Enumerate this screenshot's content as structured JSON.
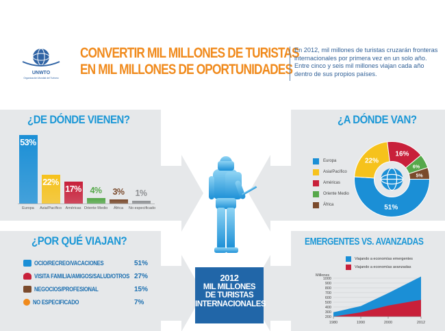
{
  "header": {
    "logo_text": "UNWTO",
    "logo_subtitle": "Organización Mundial del Turismo",
    "title_line1": "CONVERTIR MIL MILLONES DE TURISTAS",
    "title_line2": "EN MIL MILLONES DE OPORTUNIDADES",
    "desc_line1": "En 2012, mil millones de turistas cruzarán fronteras",
    "desc_line2": "internacionales por primera vez en un solo año.",
    "desc_line3": "Entre cinco y seis mil millones viajan cada año",
    "desc_line4": "dentro de sus propios países."
  },
  "colors": {
    "accent_orange": "#f08a1c",
    "accent_blue": "#1b97d6",
    "dark_blue": "#2166a8",
    "panel_grey": "#e6e8ea"
  },
  "origin": {
    "title": "¿DE DÓNDE VIENEN?",
    "bars": [
      {
        "label": "Europa",
        "value": 53,
        "display": "53%",
        "color": "#1b8fd6"
      },
      {
        "label": "Asia/Pacífico",
        "value": 22,
        "display": "22%",
        "color": "#f6c21c"
      },
      {
        "label": "Américas",
        "value": 17,
        "display": "17%",
        "color": "#c8203a"
      },
      {
        "label": "Oriente Medio",
        "value": 4,
        "display": "4%",
        "color": "#56a84a"
      },
      {
        "label": "África",
        "value": 3,
        "display": "3%",
        "color": "#7a4a2c"
      },
      {
        "label": "No especificado",
        "value": 1,
        "display": "1%",
        "color": "#8f9194"
      }
    ]
  },
  "why": {
    "title": "¿POR QUÉ VIAJAN?",
    "items": [
      {
        "label": "OCIO/RECREO/VACACIONES",
        "pct": "51%",
        "icon": "camera-icon",
        "color": "#1b8fd6"
      },
      {
        "label": "VISITA FAMILIA/AMIGOS/SALUD/OTROS",
        "pct": "27%",
        "icon": "heart-icon",
        "color": "#c8203a"
      },
      {
        "label": "NEGOCIOS/PROFESIONAL",
        "pct": "15%",
        "icon": "briefcase-icon",
        "color": "#7a4a2c"
      },
      {
        "label": "NO ESPECIFICADO",
        "pct": "7%",
        "icon": "question-icon",
        "color": "#f08a1c"
      }
    ]
  },
  "destination": {
    "title": "¿A DÓNDE VAN?",
    "slices": [
      {
        "label": "Europa",
        "value": 51,
        "display": "51%",
        "color": "#1b8fd6"
      },
      {
        "label": "Asia/Pacífico",
        "value": 22,
        "display": "22%",
        "color": "#f6c21c"
      },
      {
        "label": "Américas",
        "value": 16,
        "display": "16%",
        "color": "#c8203a"
      },
      {
        "label": "Oriente Medio",
        "value": 6,
        "display": "6%",
        "color": "#56a84a"
      },
      {
        "label": "África",
        "value": 5,
        "display": "5%",
        "color": "#7a4a2c"
      }
    ]
  },
  "center": {
    "year": "2012",
    "line1": "MIL MILLONES",
    "line2": "DE TURISTAS",
    "line3": "INTERNACIONALES"
  },
  "emerging": {
    "title": "EMERGENTES VS. AVANZADAS",
    "ylabel": "Millones",
    "legend_emerging": "Viajando a economías emergentes",
    "legend_advanced": "Viajando a economías avanzadas",
    "x_ticks": [
      "1980",
      "1990",
      "2000",
      "2012"
    ],
    "y_ticks": [
      "200",
      "300",
      "400",
      "500",
      "600",
      "700",
      "800",
      "900",
      "1000"
    ],
    "color_emerging": "#1b8fd6",
    "color_advanced": "#c8203a"
  },
  "chart_data": [
    {
      "type": "bar",
      "title": "¿DE DÓNDE VIENEN?",
      "categories": [
        "Europa",
        "Asia/Pacífico",
        "Américas",
        "Oriente Medio",
        "África",
        "No especificado"
      ],
      "values": [
        53,
        22,
        17,
        4,
        3,
        1
      ]
    },
    {
      "type": "pie",
      "title": "¿A DÓNDE VAN?",
      "categories": [
        "Europa",
        "Asia/Pacífico",
        "Américas",
        "Oriente Medio",
        "África"
      ],
      "values": [
        51,
        22,
        16,
        6,
        5
      ]
    },
    {
      "type": "area",
      "title": "EMERGENTES VS. AVANZADAS",
      "ylabel": "Millones",
      "x": [
        1980,
        1990,
        2000,
        2012
      ],
      "ylim": [
        200,
        1000
      ],
      "series": [
        {
          "name": "Viajando a economías emergentes",
          "values": [
            290,
            420,
            690,
            1035
          ]
        },
        {
          "name": "Viajando a economías avanzadas",
          "values": [
            200,
            290,
            430,
            550
          ]
        }
      ]
    }
  ]
}
